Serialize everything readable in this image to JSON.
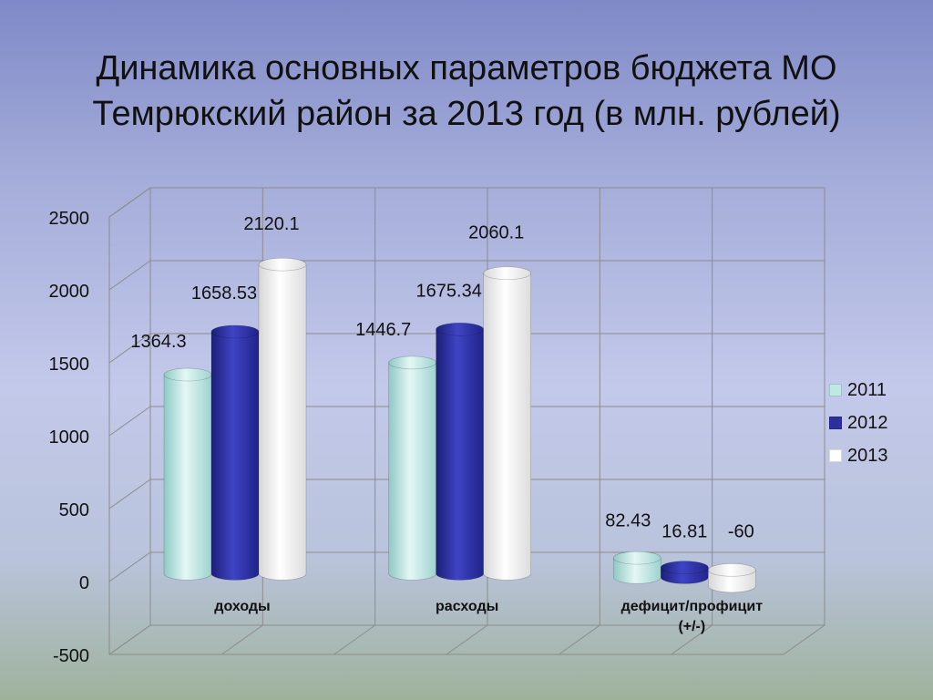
{
  "title": {
    "line1": "Динамика основных параметров бюджета МО",
    "line2": "Темрюкский район за 2013 год (в млн. рублей)"
  },
  "colors": {
    "2011": "#bfe8e4",
    "2012": "#2b2fa0",
    "2013": "#ffffff"
  },
  "chart_data": {
    "type": "bar",
    "categories": [
      "доходы",
      "расходы",
      "дефицит/профицит (+/-)"
    ],
    "category_lines": [
      [
        "доходы"
      ],
      [
        "расходы"
      ],
      [
        "дефицит/профицит",
        "(+/-)"
      ]
    ],
    "series": [
      {
        "name": "2011",
        "values": [
          1364.3,
          1446.7,
          82.43
        ],
        "labels": [
          "1364.3",
          "1446.7",
          "82.43"
        ]
      },
      {
        "name": "2012",
        "values": [
          1658.53,
          1675.34,
          16.81
        ],
        "labels": [
          "1658.53",
          "1675.34",
          "16.81"
        ]
      },
      {
        "name": "2013",
        "values": [
          2120.1,
          2060.1,
          -60
        ],
        "labels": [
          "2120.1",
          "2060.1",
          "-60"
        ]
      }
    ],
    "ylim": [
      -500,
      2500
    ],
    "yticks": [
      2500,
      2000,
      1500,
      1000,
      500,
      0,
      -500
    ],
    "grid": true,
    "legend_position": "right"
  }
}
